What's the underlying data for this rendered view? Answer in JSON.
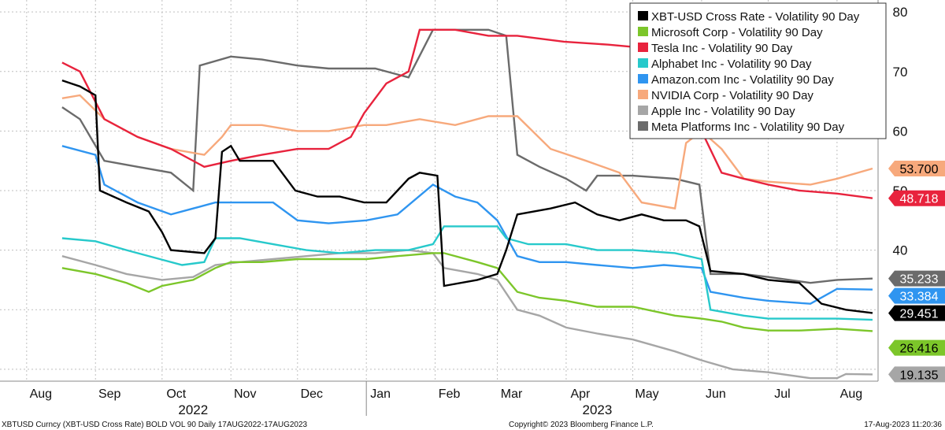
{
  "footer": {
    "left": "XBTUSD Curncy (XBT-USD Cross Rate) BOLD VOL 90  Daily 17AUG2022-17AUG2023",
    "center": "Copyright© 2023 Bloomberg Finance L.P.",
    "right": "17-Aug-2023 11:20:36"
  },
  "chart_data": {
    "type": "line",
    "title": "",
    "xlabel": "",
    "ylabel": "",
    "ylim": [
      18,
      82
    ],
    "y_ticks": [
      40,
      50,
      60,
      70,
      80
    ],
    "x_range": [
      "2022-08-17",
      "2023-08-17"
    ],
    "x_ticks": [
      "Aug",
      "Sep",
      "Oct",
      "Nov",
      "Dec",
      "Jan",
      "Feb",
      "Mar",
      "Apr",
      "May",
      "Jun",
      "Jul",
      "Aug"
    ],
    "x_tick_dates": [
      "2022-08-01",
      "2022-09-01",
      "2022-10-01",
      "2022-11-01",
      "2022-12-01",
      "2023-01-01",
      "2023-02-01",
      "2023-03-01",
      "2023-04-01",
      "2023-05-01",
      "2023-06-01",
      "2023-07-01",
      "2023-08-01"
    ],
    "years": [
      {
        "label": "2022",
        "date": "2022-10-15"
      },
      {
        "label": "2023",
        "date": "2023-04-15"
      }
    ],
    "year_divider": "2023-01-01",
    "grid": true,
    "legend_position": "top-right",
    "series": [
      {
        "name": "XBT-USD Cross Rate - Volatility 90 Day",
        "color": "#000000",
        "last": "29.451",
        "last_value": 29.451,
        "points": [
          [
            "2022-08-17",
            68.5
          ],
          [
            "2022-08-25",
            67.5
          ],
          [
            "2022-09-01",
            66
          ],
          [
            "2022-09-03",
            50
          ],
          [
            "2022-09-15",
            48
          ],
          [
            "2022-09-25",
            46.5
          ],
          [
            "2022-10-01",
            43
          ],
          [
            "2022-10-05",
            40
          ],
          [
            "2022-10-20",
            39.5
          ],
          [
            "2022-10-25",
            42
          ],
          [
            "2022-10-28",
            56.5
          ],
          [
            "2022-11-01",
            57.5
          ],
          [
            "2022-11-05",
            55
          ],
          [
            "2022-11-20",
            55
          ],
          [
            "2022-11-30",
            50
          ],
          [
            "2022-12-10",
            49
          ],
          [
            "2022-12-20",
            49
          ],
          [
            "2022-12-31",
            48
          ],
          [
            "2023-01-10",
            48
          ],
          [
            "2023-01-15",
            50
          ],
          [
            "2023-01-20",
            52
          ],
          [
            "2023-01-25",
            53
          ],
          [
            "2023-02-02",
            52.5
          ],
          [
            "2023-02-05",
            34
          ],
          [
            "2023-02-20",
            35
          ],
          [
            "2023-03-01",
            36
          ],
          [
            "2023-03-05",
            40
          ],
          [
            "2023-03-10",
            46
          ],
          [
            "2023-03-25",
            47
          ],
          [
            "2023-04-05",
            48
          ],
          [
            "2023-04-15",
            46
          ],
          [
            "2023-04-25",
            45
          ],
          [
            "2023-05-05",
            46
          ],
          [
            "2023-05-15",
            45
          ],
          [
            "2023-05-25",
            45
          ],
          [
            "2023-05-31",
            44
          ],
          [
            "2023-06-05",
            36.5
          ],
          [
            "2023-06-20",
            36
          ],
          [
            "2023-07-01",
            35
          ],
          [
            "2023-07-15",
            34.5
          ],
          [
            "2023-07-25",
            31
          ],
          [
            "2023-08-05",
            30
          ],
          [
            "2023-08-17",
            29.451
          ]
        ]
      },
      {
        "name": "Microsoft Corp - Volatility 90 Day",
        "color": "#7cc62a",
        "last": "26.416",
        "last_value": 26.416,
        "points": [
          [
            "2022-08-17",
            37
          ],
          [
            "2022-09-01",
            36
          ],
          [
            "2022-09-15",
            34.5
          ],
          [
            "2022-09-25",
            33
          ],
          [
            "2022-10-01",
            34
          ],
          [
            "2022-10-15",
            35
          ],
          [
            "2022-10-25",
            37
          ],
          [
            "2022-11-01",
            38
          ],
          [
            "2022-11-15",
            38
          ],
          [
            "2022-12-01",
            38.5
          ],
          [
            "2022-12-15",
            38.5
          ],
          [
            "2023-01-01",
            38.5
          ],
          [
            "2023-01-15",
            39
          ],
          [
            "2023-01-31",
            39.5
          ],
          [
            "2023-02-05",
            39.5
          ],
          [
            "2023-02-20",
            38
          ],
          [
            "2023-03-01",
            37
          ],
          [
            "2023-03-10",
            33
          ],
          [
            "2023-03-20",
            32
          ],
          [
            "2023-04-01",
            31.5
          ],
          [
            "2023-04-15",
            30.5
          ],
          [
            "2023-05-01",
            30.5
          ],
          [
            "2023-05-20",
            29
          ],
          [
            "2023-06-01",
            28.5
          ],
          [
            "2023-06-10",
            28
          ],
          [
            "2023-06-20",
            27
          ],
          [
            "2023-07-01",
            26.5
          ],
          [
            "2023-07-15",
            26.5
          ],
          [
            "2023-08-01",
            26.8
          ],
          [
            "2023-08-17",
            26.416
          ]
        ]
      },
      {
        "name": "Tesla Inc - Volatility 90 Day",
        "color": "#e8233d",
        "last": "48.718",
        "last_value": 48.718,
        "points": [
          [
            "2022-08-17",
            71.5
          ],
          [
            "2022-08-25",
            70
          ],
          [
            "2022-09-05",
            62
          ],
          [
            "2022-09-20",
            59
          ],
          [
            "2022-10-05",
            57
          ],
          [
            "2022-10-20",
            54
          ],
          [
            "2022-11-01",
            55
          ],
          [
            "2022-11-15",
            56
          ],
          [
            "2022-12-01",
            57
          ],
          [
            "2022-12-15",
            57
          ],
          [
            "2022-12-25",
            59
          ],
          [
            "2022-12-31",
            63
          ],
          [
            "2023-01-10",
            68
          ],
          [
            "2023-01-20",
            70
          ],
          [
            "2023-01-25",
            77
          ],
          [
            "2023-02-10",
            77
          ],
          [
            "2023-02-25",
            76
          ],
          [
            "2023-03-10",
            76
          ],
          [
            "2023-03-31",
            75
          ],
          [
            "2023-04-20",
            74.5
          ],
          [
            "2023-05-05",
            74
          ],
          [
            "2023-05-20",
            72
          ],
          [
            "2023-05-25",
            65
          ],
          [
            "2023-06-01",
            60
          ],
          [
            "2023-06-10",
            53
          ],
          [
            "2023-06-20",
            52
          ],
          [
            "2023-07-01",
            51
          ],
          [
            "2023-07-15",
            50
          ],
          [
            "2023-08-01",
            49.5
          ],
          [
            "2023-08-17",
            48.718
          ]
        ]
      },
      {
        "name": "Alphabet Inc - Volatility 90 Day",
        "color": "#27c9cb",
        "last": "28.3",
        "last_value": 28.3,
        "points": [
          [
            "2022-08-17",
            42
          ],
          [
            "2022-09-01",
            41.5
          ],
          [
            "2022-09-15",
            40
          ],
          [
            "2022-09-30",
            38.5
          ],
          [
            "2022-10-10",
            37.5
          ],
          [
            "2022-10-20",
            38
          ],
          [
            "2022-10-25",
            42
          ],
          [
            "2022-11-05",
            42
          ],
          [
            "2022-11-20",
            41
          ],
          [
            "2022-12-05",
            40
          ],
          [
            "2022-12-20",
            39.5
          ],
          [
            "2023-01-05",
            40
          ],
          [
            "2023-01-20",
            40
          ],
          [
            "2023-01-31",
            41
          ],
          [
            "2023-02-05",
            44
          ],
          [
            "2023-02-20",
            44
          ],
          [
            "2023-03-01",
            44
          ],
          [
            "2023-03-05",
            42
          ],
          [
            "2023-03-15",
            41
          ],
          [
            "2023-04-01",
            41
          ],
          [
            "2023-04-15",
            40
          ],
          [
            "2023-05-01",
            40
          ],
          [
            "2023-05-20",
            39.5
          ],
          [
            "2023-06-01",
            38.5
          ],
          [
            "2023-06-05",
            30
          ],
          [
            "2023-06-20",
            29
          ],
          [
            "2023-07-01",
            28.5
          ],
          [
            "2023-08-01",
            28.5
          ],
          [
            "2023-08-17",
            28.3
          ]
        ]
      },
      {
        "name": "Amazon.com Inc - Volatility 90 Day",
        "color": "#2f95f0",
        "last": "33.384",
        "last_value": 33.384,
        "points": [
          [
            "2022-08-17",
            57.5
          ],
          [
            "2022-09-01",
            56
          ],
          [
            "2022-09-05",
            51
          ],
          [
            "2022-09-20",
            48
          ],
          [
            "2022-10-05",
            46
          ],
          [
            "2022-10-15",
            47
          ],
          [
            "2022-10-25",
            48
          ],
          [
            "2022-11-01",
            48
          ],
          [
            "2022-11-20",
            48
          ],
          [
            "2022-12-01",
            45
          ],
          [
            "2022-12-15",
            44.5
          ],
          [
            "2023-01-01",
            45
          ],
          [
            "2023-01-15",
            46
          ],
          [
            "2023-01-31",
            51
          ],
          [
            "2023-02-10",
            49
          ],
          [
            "2023-02-20",
            48
          ],
          [
            "2023-03-01",
            45
          ],
          [
            "2023-03-10",
            39
          ],
          [
            "2023-03-20",
            38
          ],
          [
            "2023-04-01",
            38
          ],
          [
            "2023-04-15",
            37.5
          ],
          [
            "2023-05-01",
            37
          ],
          [
            "2023-05-15",
            37.5
          ],
          [
            "2023-06-01",
            37
          ],
          [
            "2023-06-05",
            33
          ],
          [
            "2023-06-20",
            32
          ],
          [
            "2023-07-01",
            31.5
          ],
          [
            "2023-07-20",
            31
          ],
          [
            "2023-08-01",
            33.5
          ],
          [
            "2023-08-17",
            33.384
          ]
        ]
      },
      {
        "name": "NVIDIA Corp - Volatility 90 Day",
        "color": "#f7a97c",
        "last": "53.700",
        "last_value": 53.7,
        "points": [
          [
            "2022-08-17",
            65.5
          ],
          [
            "2022-08-25",
            66
          ],
          [
            "2022-09-05",
            62
          ],
          [
            "2022-09-20",
            59
          ],
          [
            "2022-10-05",
            57
          ],
          [
            "2022-10-20",
            56
          ],
          [
            "2022-10-28",
            59
          ],
          [
            "2022-11-01",
            61
          ],
          [
            "2022-11-15",
            61
          ],
          [
            "2022-12-01",
            60
          ],
          [
            "2022-12-15",
            60
          ],
          [
            "2022-12-31",
            61
          ],
          [
            "2023-01-10",
            61
          ],
          [
            "2023-01-25",
            62
          ],
          [
            "2023-02-10",
            61
          ],
          [
            "2023-02-25",
            62.5
          ],
          [
            "2023-03-10",
            62.5
          ],
          [
            "2023-03-25",
            57
          ],
          [
            "2023-04-10",
            55
          ],
          [
            "2023-04-25",
            53
          ],
          [
            "2023-05-05",
            48
          ],
          [
            "2023-05-20",
            47
          ],
          [
            "2023-05-25",
            58
          ],
          [
            "2023-06-01",
            60
          ],
          [
            "2023-06-10",
            57
          ],
          [
            "2023-06-20",
            52
          ],
          [
            "2023-07-01",
            51.5
          ],
          [
            "2023-07-20",
            51
          ],
          [
            "2023-08-01",
            52
          ],
          [
            "2023-08-17",
            53.7
          ]
        ]
      },
      {
        "name": "Apple Inc - Volatility 90 Day",
        "color": "#a6a6a6",
        "last": "19.135",
        "last_value": 19.135,
        "points": [
          [
            "2022-08-17",
            39
          ],
          [
            "2022-09-01",
            37.5
          ],
          [
            "2022-09-15",
            36
          ],
          [
            "2022-10-01",
            35
          ],
          [
            "2022-10-15",
            35.5
          ],
          [
            "2022-10-25",
            37.5
          ],
          [
            "2022-11-05",
            38
          ],
          [
            "2022-11-20",
            38.5
          ],
          [
            "2022-12-05",
            39
          ],
          [
            "2022-12-20",
            39.5
          ],
          [
            "2023-01-05",
            39.5
          ],
          [
            "2023-01-20",
            40
          ],
          [
            "2023-01-31",
            39.5
          ],
          [
            "2023-02-05",
            37
          ],
          [
            "2023-02-20",
            36
          ],
          [
            "2023-03-01",
            35
          ],
          [
            "2023-03-10",
            30
          ],
          [
            "2023-03-20",
            29
          ],
          [
            "2023-04-01",
            27
          ],
          [
            "2023-04-15",
            26
          ],
          [
            "2023-05-01",
            25
          ],
          [
            "2023-05-20",
            23
          ],
          [
            "2023-06-01",
            21.5
          ],
          [
            "2023-06-15",
            20
          ],
          [
            "2023-07-01",
            19.5
          ],
          [
            "2023-07-20",
            18.5
          ],
          [
            "2023-08-01",
            18.5
          ],
          [
            "2023-08-05",
            19.2
          ],
          [
            "2023-08-17",
            19.135
          ]
        ]
      },
      {
        "name": "Meta Platforms Inc - Volatility 90 Day",
        "color": "#6b6b6b",
        "last": "35.233",
        "last_value": 35.233,
        "points": [
          [
            "2022-08-17",
            64
          ],
          [
            "2022-08-25",
            62
          ],
          [
            "2022-09-05",
            55
          ],
          [
            "2022-09-20",
            54
          ],
          [
            "2022-10-05",
            53
          ],
          [
            "2022-10-15",
            50
          ],
          [
            "2022-10-18",
            71
          ],
          [
            "2022-11-01",
            72.5
          ],
          [
            "2022-11-15",
            72
          ],
          [
            "2022-12-01",
            71
          ],
          [
            "2022-12-15",
            70.5
          ],
          [
            "2023-01-05",
            70.5
          ],
          [
            "2023-01-20",
            69
          ],
          [
            "2023-01-31",
            77
          ],
          [
            "2023-02-10",
            77
          ],
          [
            "2023-02-25",
            77
          ],
          [
            "2023-03-05",
            76
          ],
          [
            "2023-03-10",
            56
          ],
          [
            "2023-03-20",
            54
          ],
          [
            "2023-04-01",
            52
          ],
          [
            "2023-04-10",
            50
          ],
          [
            "2023-04-15",
            52.5
          ],
          [
            "2023-05-01",
            52.5
          ],
          [
            "2023-05-20",
            52
          ],
          [
            "2023-05-31",
            51
          ],
          [
            "2023-06-05",
            36
          ],
          [
            "2023-06-20",
            36
          ],
          [
            "2023-07-01",
            35.5
          ],
          [
            "2023-07-20",
            34.5
          ],
          [
            "2023-08-01",
            35
          ],
          [
            "2023-08-17",
            35.233
          ]
        ]
      }
    ],
    "value_labels": [
      "53.700",
      "48.718",
      "35.233",
      "33.384",
      "29.451",
      "26.416",
      "19.135"
    ]
  }
}
